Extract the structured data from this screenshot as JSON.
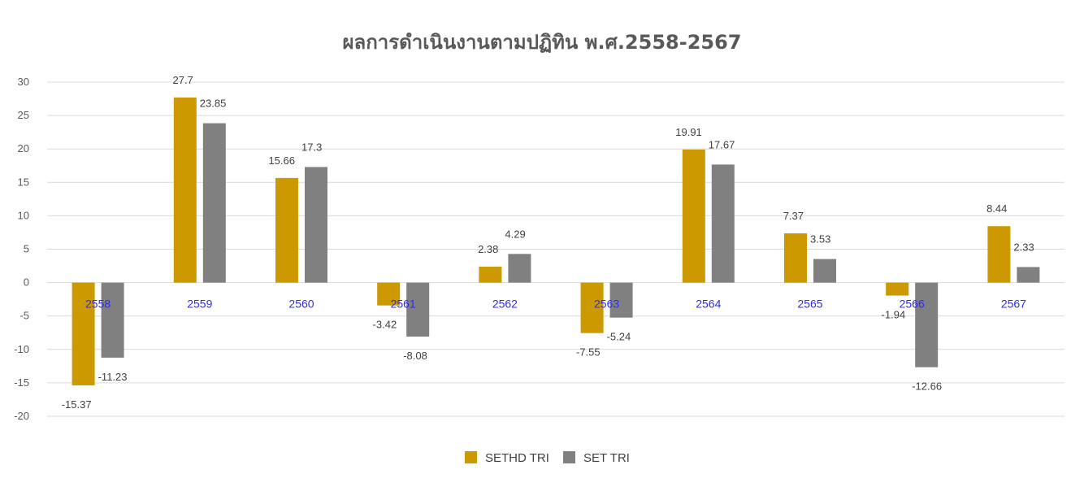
{
  "chart_data": {
    "type": "bar",
    "title": "ผลการดำเนินงานตามปฏิทิน พ.ศ.2558-2567",
    "categories": [
      "2558",
      "2559",
      "2560",
      "2561",
      "2562",
      "2563",
      "2564",
      "2565",
      "2566",
      "2567"
    ],
    "series": [
      {
        "name": "SETHD TRI",
        "color": "#cc9900",
        "values": [
          -15.37,
          27.7,
          15.66,
          -3.42,
          2.38,
          -7.55,
          19.91,
          7.37,
          -1.94,
          8.44
        ]
      },
      {
        "name": "SET TRI",
        "color": "#808080",
        "values": [
          -11.23,
          23.85,
          17.3,
          -8.08,
          4.29,
          -5.24,
          17.67,
          3.53,
          -12.66,
          2.33
        ]
      }
    ],
    "ylim": [
      -20,
      30
    ],
    "yticks": [
      30,
      25,
      20,
      15,
      10,
      5,
      0,
      -5,
      -10,
      -15,
      -20
    ],
    "grid": true,
    "legend": "bottom-center",
    "xlabel": "",
    "ylabel": ""
  }
}
